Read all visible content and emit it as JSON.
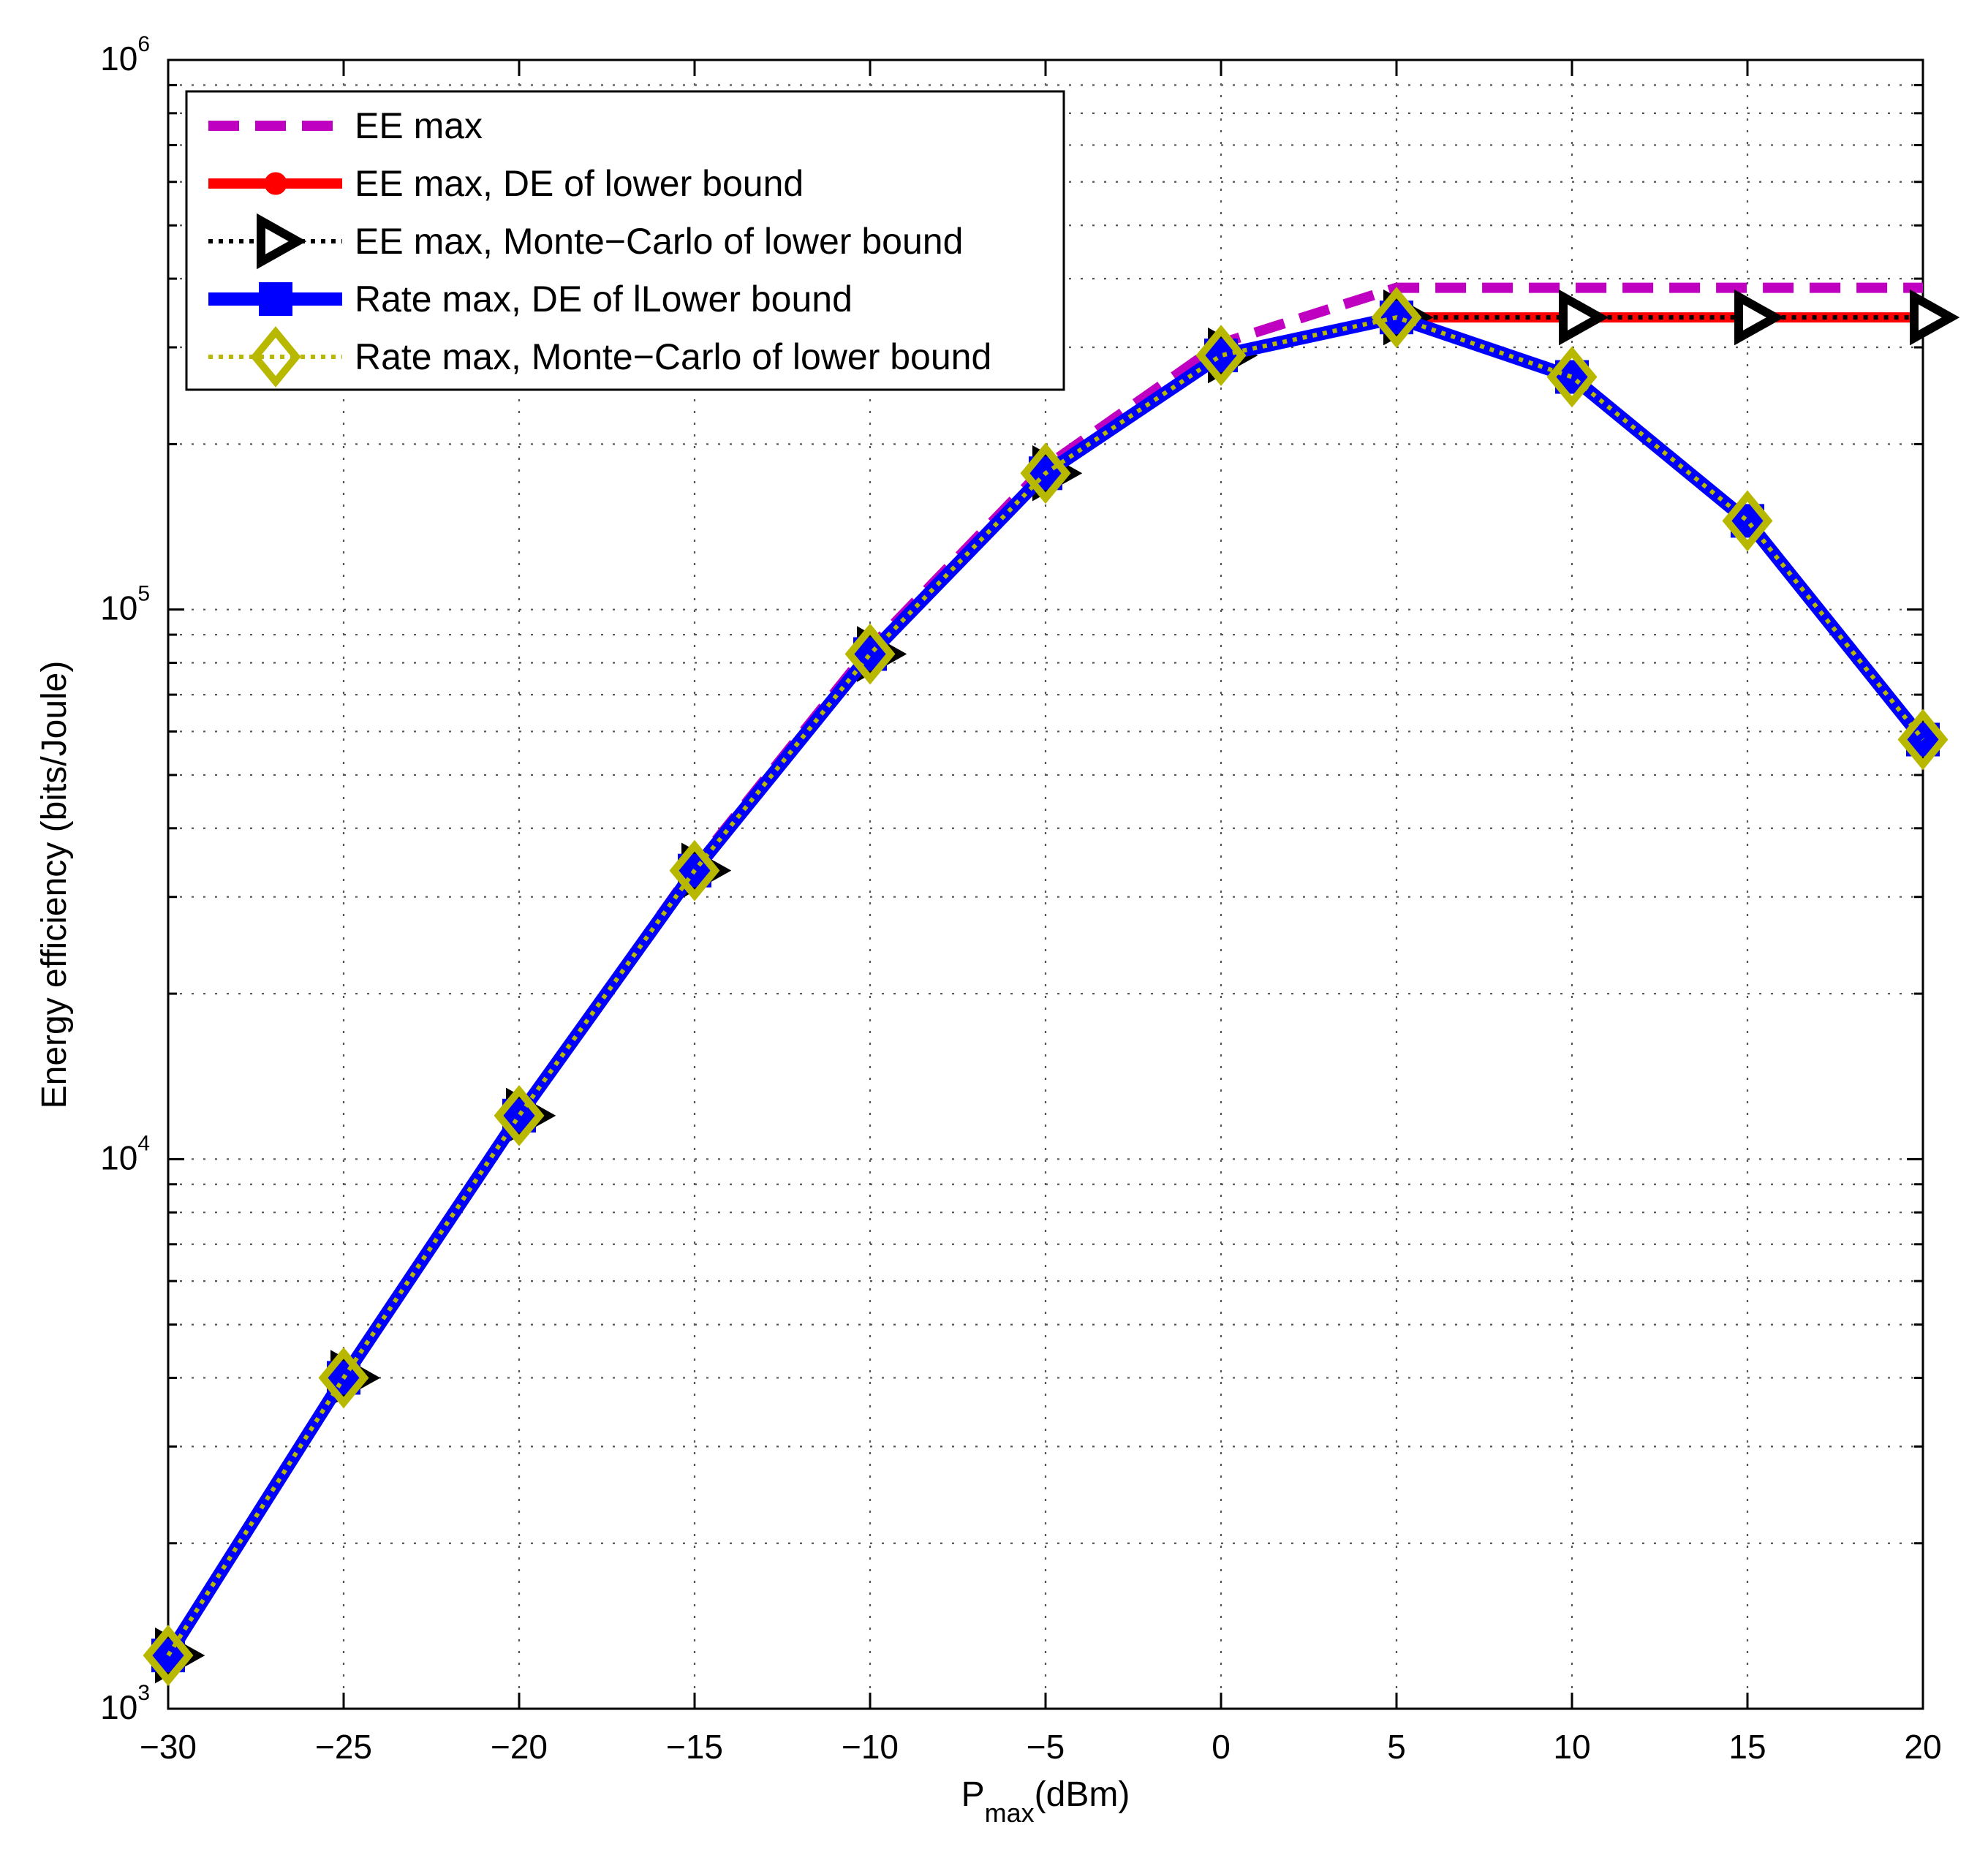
{
  "chart_data": {
    "type": "line",
    "xlabel": "P",
    "xlabel_sub": "max",
    "xlabel_unit": "(dBm)",
    "ylabel": "Energy efficiency (bits/Joule)",
    "xlim": [
      -30,
      20
    ],
    "ylim": [
      1000,
      1000000
    ],
    "yscale": "log",
    "grid": true,
    "legend_position": "top-left",
    "x_ticks": [
      "−30",
      "−25",
      "−20",
      "−15",
      "−10",
      "−5",
      "0",
      "5",
      "10",
      "15",
      "20"
    ],
    "y_ticks": [
      {
        "base": "10",
        "exp": "3"
      },
      {
        "base": "10",
        "exp": "4"
      },
      {
        "base": "10",
        "exp": "5"
      },
      {
        "base": "10",
        "exp": "6"
      }
    ],
    "x": [
      -30,
      -25,
      -20,
      -15,
      -10,
      -5,
      0,
      5,
      10,
      15,
      20
    ],
    "series": [
      {
        "name": "EE max",
        "color": "#c000c0",
        "style": "dashed",
        "marker": "none",
        "values": [
          1250,
          4000,
          12000,
          34000,
          85000,
          182000,
          305000,
          385000,
          385000,
          385000,
          385000
        ]
      },
      {
        "name": "EE max, DE of lower bound",
        "color": "#ff0000",
        "style": "solid",
        "marker": "circle",
        "values": [
          1250,
          4000,
          12000,
          33500,
          83000,
          177000,
          290000,
          340000,
          340000,
          340000,
          340000
        ]
      },
      {
        "name": "EE max, Monte−Carlo of lower bound",
        "color": "#000000",
        "style": "dotted",
        "marker": "triangle-right",
        "values": [
          1250,
          4000,
          12000,
          33500,
          83000,
          177000,
          290000,
          340000,
          340000,
          340000,
          340000
        ]
      },
      {
        "name": "Rate max, DE of lLower bound",
        "color": "#0000ff",
        "style": "solid",
        "marker": "square",
        "values": [
          1250,
          4000,
          12000,
          33500,
          83000,
          177000,
          290000,
          340000,
          265000,
          145000,
          58000
        ]
      },
      {
        "name": "Rate max, Monte−Carlo of lower bound",
        "color": "#b8b800",
        "style": "dotted",
        "marker": "diamond",
        "values": [
          1250,
          4000,
          12000,
          33500,
          83000,
          177000,
          290000,
          340000,
          265000,
          145000,
          58000
        ]
      }
    ]
  }
}
